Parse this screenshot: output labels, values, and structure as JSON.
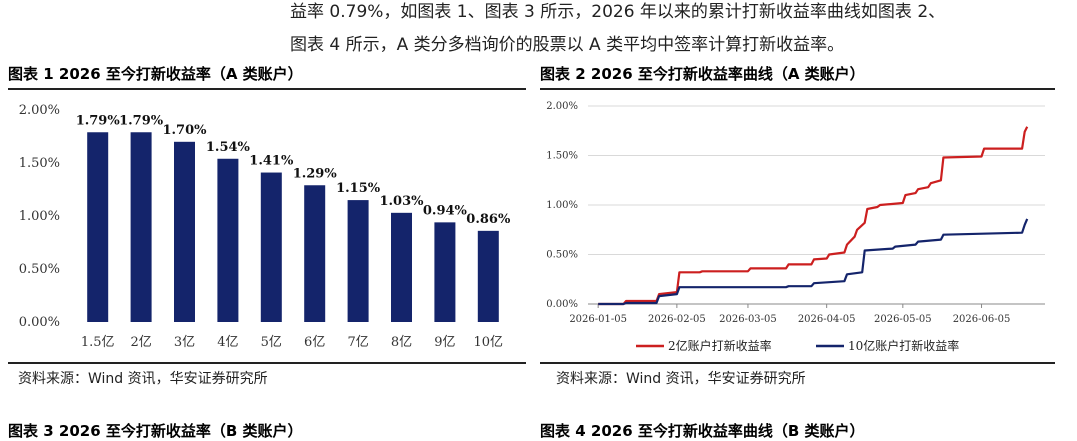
{
  "document": {
    "intro_line1": "益率 0.79%，如图表 1、图表 3 所示，2026 年以来的累计打新收益率曲线如图表 2、",
    "intro_line2": "图表 4 所示，A 类分多档询价的股票以 A 类平均中签率计算打新收益率。",
    "bottom_left_heading": "图表 3 2026 至今打新收益率（B 类账户）",
    "bottom_right_heading": "图表 4 2026 至今打新收益率曲线（B 类账户）"
  },
  "figures": [
    {
      "title": "图表 1 2026 至今打新收益率（A 类账户）",
      "source": "资料来源：Wind 资讯，华安证券研究所"
    },
    {
      "title": "图表 2 2026 至今打新收益率曲线（A 类账户）",
      "source": "资料来源：Wind 资讯，华安证券研究所"
    }
  ],
  "chart_data": [
    {
      "type": "bar",
      "categories": [
        "1.5亿",
        "2亿",
        "3亿",
        "4亿",
        "5亿",
        "6亿",
        "7亿",
        "8亿",
        "9亿",
        "10亿"
      ],
      "values": [
        1.79,
        1.79,
        1.7,
        1.54,
        1.41,
        1.29,
        1.15,
        1.03,
        0.94,
        0.86
      ],
      "value_labels": [
        "1.79%",
        "1.79%",
        "1.70%",
        "1.54%",
        "1.41%",
        "1.29%",
        "1.15%",
        "1.03%",
        "0.94%",
        "0.86%"
      ],
      "yticks": [
        0,
        0.5,
        1.0,
        1.5,
        2.0
      ],
      "ytick_labels": [
        "0.00%",
        "0.50%",
        "1.00%",
        "1.50%",
        "2.00%"
      ],
      "ylim": [
        0,
        2.0
      ],
      "bar_color": "#14246b",
      "grid": false
    },
    {
      "type": "line",
      "xlim": [
        "2026-01-01",
        "2026-06-30"
      ],
      "xticks": [
        "2026-01-05",
        "2026-02-05",
        "2026-03-05",
        "2026-04-05",
        "2026-05-05",
        "2026-06-05"
      ],
      "yticks": [
        0,
        0.5,
        1.0,
        1.5,
        2.0
      ],
      "ytick_labels": [
        "0.00%",
        "0.50%",
        "1.00%",
        "1.50%",
        "2.00%"
      ],
      "ylim": [
        0,
        2.0
      ],
      "grid": true,
      "legend_position": "bottom",
      "series": [
        {
          "name": "2亿账户打新收益率",
          "color": "#cc1f1f",
          "x": [
            "2026-01-05",
            "2026-01-15",
            "2026-01-16",
            "2026-01-28",
            "2026-01-29",
            "2026-02-05",
            "2026-02-06",
            "2026-02-14",
            "2026-02-15",
            "2026-03-05",
            "2026-03-06",
            "2026-03-20",
            "2026-03-21",
            "2026-03-30",
            "2026-03-31",
            "2026-04-05",
            "2026-04-06",
            "2026-04-12",
            "2026-04-13",
            "2026-04-16",
            "2026-04-17",
            "2026-04-20",
            "2026-04-21",
            "2026-04-25",
            "2026-04-26",
            "2026-05-05",
            "2026-05-06",
            "2026-05-10",
            "2026-05-11",
            "2026-05-15",
            "2026-05-16",
            "2026-05-20",
            "2026-05-21",
            "2026-06-05",
            "2026-06-06",
            "2026-06-21",
            "2026-06-22",
            "2026-06-23"
          ],
          "y": [
            0,
            0,
            0.03,
            0.03,
            0.1,
            0.12,
            0.32,
            0.32,
            0.33,
            0.33,
            0.36,
            0.36,
            0.4,
            0.4,
            0.45,
            0.46,
            0.5,
            0.52,
            0.6,
            0.68,
            0.75,
            0.82,
            0.96,
            0.98,
            1.0,
            1.02,
            1.1,
            1.12,
            1.16,
            1.18,
            1.22,
            1.25,
            1.48,
            1.49,
            1.57,
            1.57,
            1.74,
            1.79
          ]
        },
        {
          "name": "10亿账户打新收益率",
          "color": "#14246b",
          "x": [
            "2026-01-05",
            "2026-01-15",
            "2026-01-16",
            "2026-01-28",
            "2026-01-29",
            "2026-02-05",
            "2026-02-06",
            "2026-03-20",
            "2026-03-21",
            "2026-03-30",
            "2026-03-31",
            "2026-04-12",
            "2026-04-13",
            "2026-04-19",
            "2026-04-20",
            "2026-05-01",
            "2026-05-02",
            "2026-05-10",
            "2026-05-11",
            "2026-05-20",
            "2026-05-21",
            "2026-06-21",
            "2026-06-22",
            "2026-06-23"
          ],
          "y": [
            0,
            0,
            0.01,
            0.01,
            0.08,
            0.1,
            0.17,
            0.17,
            0.18,
            0.18,
            0.21,
            0.23,
            0.3,
            0.32,
            0.54,
            0.56,
            0.58,
            0.6,
            0.63,
            0.65,
            0.7,
            0.72,
            0.8,
            0.86
          ]
        }
      ]
    }
  ]
}
